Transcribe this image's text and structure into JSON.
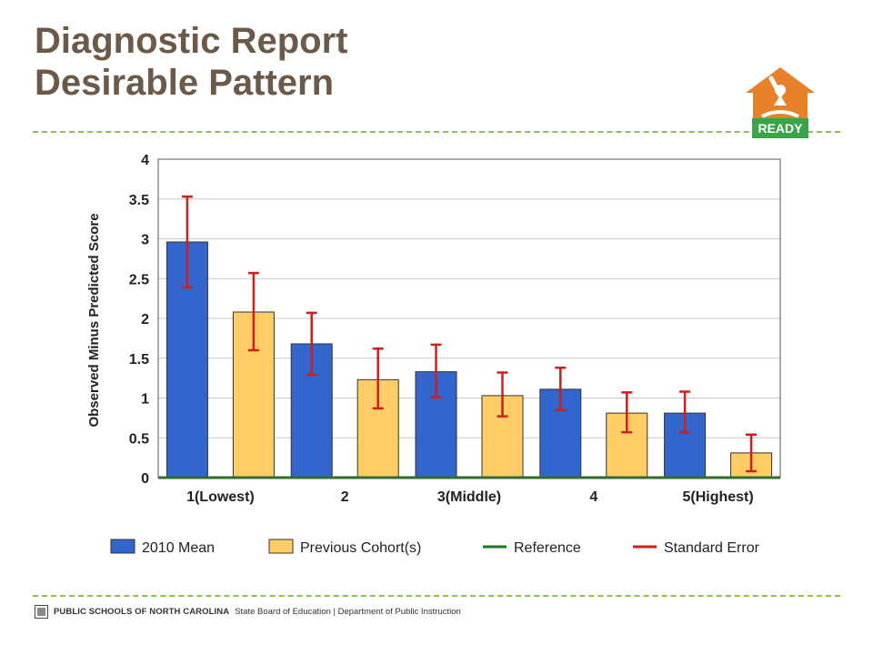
{
  "title": {
    "line1": "Diagnostic Report",
    "line2": "Desirable Pattern"
  },
  "logo": {
    "icon": "ready-house-logo-icon",
    "text": "READY",
    "colors": {
      "house": "#e8822a",
      "badge": "#3aa44a"
    }
  },
  "divider_color": "#8cc152",
  "footer": {
    "org": "PUBLIC SCHOOLS OF NORTH CAROLINA",
    "rest": "State Board of Education | Department of Public Instruction",
    "icon": "nc-seal-icon"
  },
  "chart_data": {
    "type": "bar",
    "categories": [
      "1(Lowest)",
      "2",
      "3(Middle)",
      "4",
      "5(Highest)"
    ],
    "series": [
      {
        "name": "2010 Mean",
        "color": "#3366cc",
        "values": [
          2.96,
          1.68,
          1.33,
          1.11,
          0.81
        ],
        "error_low": [
          2.39,
          1.29,
          1.01,
          0.85,
          0.57
        ],
        "error_high": [
          3.53,
          2.07,
          1.67,
          1.38,
          1.08
        ]
      },
      {
        "name": "Previous Cohort(s)",
        "color": "#ffcc66",
        "values": [
          2.08,
          1.23,
          1.03,
          0.81,
          0.31
        ],
        "error_low": [
          1.6,
          0.87,
          0.77,
          0.57,
          0.08
        ],
        "error_high": [
          2.57,
          1.62,
          1.32,
          1.07,
          0.54
        ]
      }
    ],
    "reference": {
      "name": "Reference",
      "value": 0,
      "color": "#1a7a1a"
    },
    "error_legend": {
      "name": "Standard Error",
      "color": "#cc1f1f"
    },
    "ylabel": "Observed Minus Predicted Score",
    "xlabel": "",
    "ylim": [
      0,
      4
    ],
    "yticks": [
      "0",
      "0.5",
      "1",
      "1.5",
      "2",
      "2.5",
      "3",
      "3.5",
      "4"
    ],
    "grid": true,
    "legend_position": "bottom"
  }
}
